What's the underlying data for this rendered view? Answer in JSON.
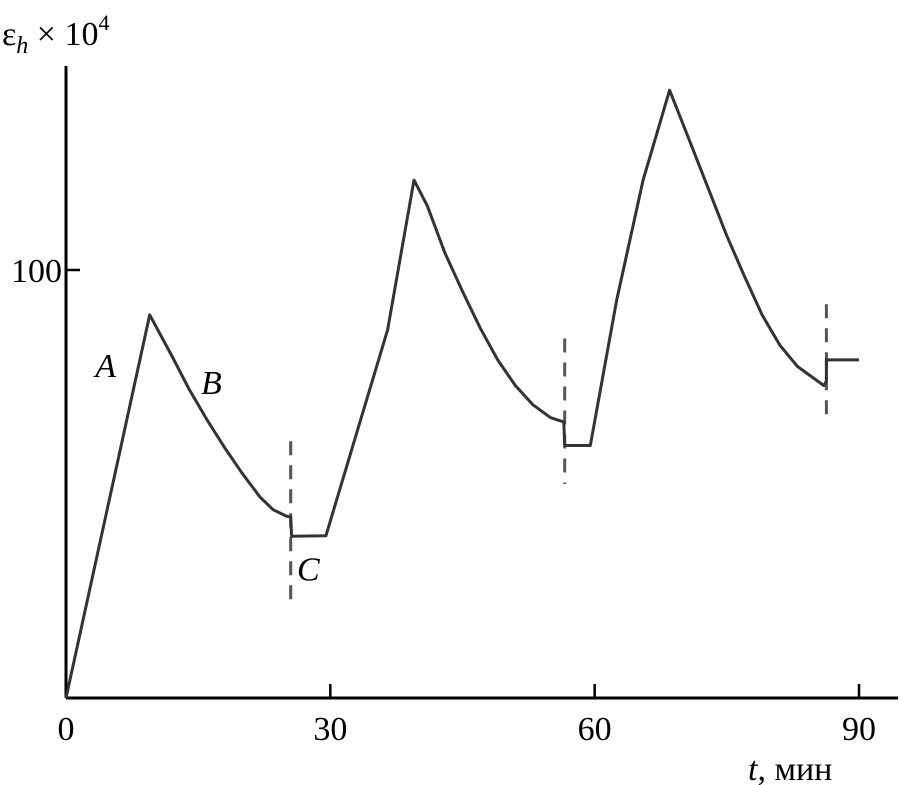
{
  "chart_data": {
    "type": "line",
    "ylabel": {
      "symbol": "ε",
      "subscript": "h",
      "multiplier": " × 10",
      "exponent": "4"
    },
    "xlabel": {
      "var": "t",
      "unit": ", мин"
    },
    "xlim": [
      0,
      90
    ],
    "ylim": [
      0,
      150
    ],
    "x_ticks": [
      0,
      30,
      60,
      90
    ],
    "x_tick_labels": [
      "0",
      "30",
      "60",
      "90"
    ],
    "y_ticks": [
      100
    ],
    "y_tick_labels": [
      "100"
    ],
    "grid": false,
    "series": [
      {
        "points": [
          [
            0,
            0
          ],
          [
            9.5,
            89.5
          ],
          [
            12,
            80
          ],
          [
            14,
            72
          ],
          [
            16,
            65
          ],
          [
            18,
            58.5
          ],
          [
            20,
            52.5
          ],
          [
            22,
            47
          ],
          [
            23.5,
            44
          ],
          [
            25,
            42.5
          ],
          [
            25.5,
            42.3
          ],
          [
            25.6,
            37.8
          ],
          [
            29.5,
            37.9
          ],
          [
            33,
            62
          ],
          [
            36.5,
            86
          ],
          [
            39.5,
            121
          ],
          [
            41,
            115
          ],
          [
            43,
            104
          ],
          [
            45,
            95
          ],
          [
            47,
            86.5
          ],
          [
            49,
            79
          ],
          [
            51,
            73
          ],
          [
            53,
            68.5
          ],
          [
            55,
            65.5
          ],
          [
            56.5,
            64.5
          ],
          [
            56.6,
            59
          ],
          [
            59.5,
            59
          ],
          [
            62.5,
            93
          ],
          [
            65.5,
            121
          ],
          [
            68.5,
            142
          ],
          [
            71,
            129
          ],
          [
            73,
            118.5
          ],
          [
            75,
            108
          ],
          [
            77,
            98.5
          ],
          [
            79,
            89.5
          ],
          [
            81,
            82.5
          ],
          [
            83,
            77.5
          ],
          [
            85,
            74.5
          ],
          [
            86,
            73
          ],
          [
            86.3,
            74
          ],
          [
            86.3,
            79
          ],
          [
            90,
            79
          ]
        ]
      }
    ],
    "phase_boundaries": [
      {
        "x": 25.5,
        "y_from": 22,
        "y_to": 60
      },
      {
        "x": 56.6,
        "y_from": 50,
        "y_to": 84
      },
      {
        "x": 86.3,
        "y_from": 66,
        "y_to": 92
      }
    ],
    "annotations": [
      {
        "text": "A",
        "x": 4.5,
        "y": 75
      },
      {
        "text": "B",
        "x": 16.5,
        "y": 71
      },
      {
        "text": "C",
        "x": 27.5,
        "y": 27.5
      }
    ]
  }
}
